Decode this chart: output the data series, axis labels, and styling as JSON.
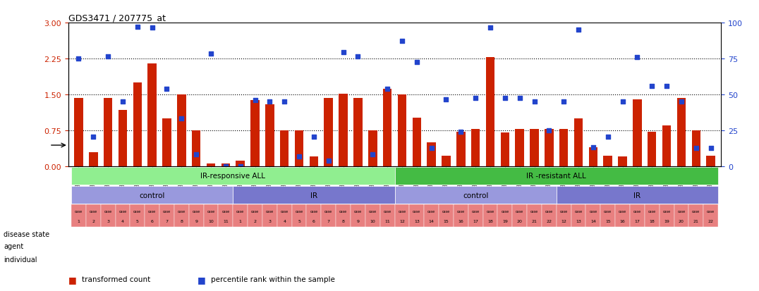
{
  "title": "GDS3471 / 207775_at",
  "gsm_labels": [
    "GSM335233",
    "GSM335234",
    "GSM335235",
    "GSM335236",
    "GSM335237",
    "GSM335238",
    "GSM335239",
    "GSM335240",
    "GSM335241",
    "GSM335242",
    "GSM335243",
    "GSM335244",
    "GSM335245",
    "GSM335246",
    "GSM335247",
    "GSM335248",
    "GSM335249",
    "GSM335250",
    "GSM335251",
    "GSM335252",
    "GSM335253",
    "GSM335254",
    "GSM335255",
    "GSM335256",
    "GSM335257",
    "GSM335258",
    "GSM335259",
    "GSM335260",
    "GSM335261",
    "GSM335262",
    "GSM335263",
    "GSM335264",
    "GSM335265",
    "GSM335266",
    "GSM335267",
    "GSM335268",
    "GSM335269",
    "GSM335270",
    "GSM335271",
    "GSM335272",
    "GSM335273",
    "GSM335274",
    "GSM335275",
    "GSM335276"
  ],
  "bar_values": [
    1.42,
    0.3,
    1.42,
    1.18,
    1.75,
    2.15,
    1.0,
    1.5,
    0.75,
    0.05,
    0.05,
    0.12,
    1.38,
    1.3,
    0.75,
    0.75,
    0.2,
    1.42,
    1.52,
    1.42,
    0.75,
    1.62,
    1.5,
    1.02,
    0.5,
    0.22,
    0.72,
    0.78,
    2.28,
    0.7,
    0.78,
    0.78,
    0.78,
    0.78,
    1.0,
    0.4,
    0.22,
    0.2,
    1.4,
    0.72,
    0.85,
    1.42,
    0.75,
    0.22
  ],
  "dot_values": [
    2.25,
    0.62,
    2.3,
    1.35,
    2.92,
    2.9,
    1.62,
    1.0,
    0.25,
    2.35,
    0.0,
    0.0,
    1.38,
    1.35,
    1.35,
    0.2,
    0.62,
    0.12,
    2.38,
    2.3,
    0.25,
    1.62,
    2.62,
    2.18,
    0.38,
    1.4,
    0.72,
    1.42,
    2.9,
    1.42,
    1.42,
    1.35,
    0.75,
    1.35,
    2.85,
    0.4,
    0.62,
    1.35,
    2.28,
    1.68,
    1.68,
    1.35,
    0.38,
    0.38
  ],
  "bar_color": "#cc2200",
  "dot_color": "#2244cc",
  "dotted_lines": [
    0.75,
    1.5,
    2.25
  ],
  "ylim_left": [
    0,
    3
  ],
  "ylim_right": [
    0,
    100
  ],
  "yticks_left": [
    0,
    0.75,
    1.5,
    2.25,
    3
  ],
  "yticks_right": [
    0,
    25,
    50,
    75,
    100
  ],
  "disease_state_blocks": [
    {
      "label": "IR-responsive ALL",
      "start": 0,
      "end": 22,
      "color": "#90ee90"
    },
    {
      "label": "IR -resistant ALL",
      "start": 22,
      "end": 44,
      "color": "#44bb44"
    }
  ],
  "agent_blocks": [
    {
      "label": "control",
      "start": 0,
      "end": 11,
      "color": "#9999dd"
    },
    {
      "label": "IR",
      "start": 11,
      "end": 22,
      "color": "#7777cc"
    },
    {
      "label": "control",
      "start": 22,
      "end": 33,
      "color": "#9999dd"
    },
    {
      "label": "IR",
      "start": 33,
      "end": 44,
      "color": "#7777cc"
    }
  ],
  "individual_numbers_first": [
    "1",
    "2",
    "3",
    "4",
    "5",
    "6",
    "7",
    "8",
    "9",
    "10",
    "11",
    "1",
    "2",
    "3",
    "4",
    "5",
    "6",
    "7",
    "8",
    "9",
    "10",
    "11"
  ],
  "individual_numbers_second": [
    "12",
    "13",
    "14",
    "15",
    "16",
    "17",
    "18",
    "19",
    "20",
    "21",
    "22",
    "12",
    "13",
    "14",
    "15",
    "16",
    "17",
    "18",
    "19",
    "20",
    "21",
    "22"
  ],
  "individual_color": "#e88080",
  "legend_bar_label": "transformed count",
  "legend_dot_label": "percentile rank within the sample",
  "row_labels": [
    "disease state",
    "agent",
    "individual"
  ],
  "bg_color": "#ffffff"
}
